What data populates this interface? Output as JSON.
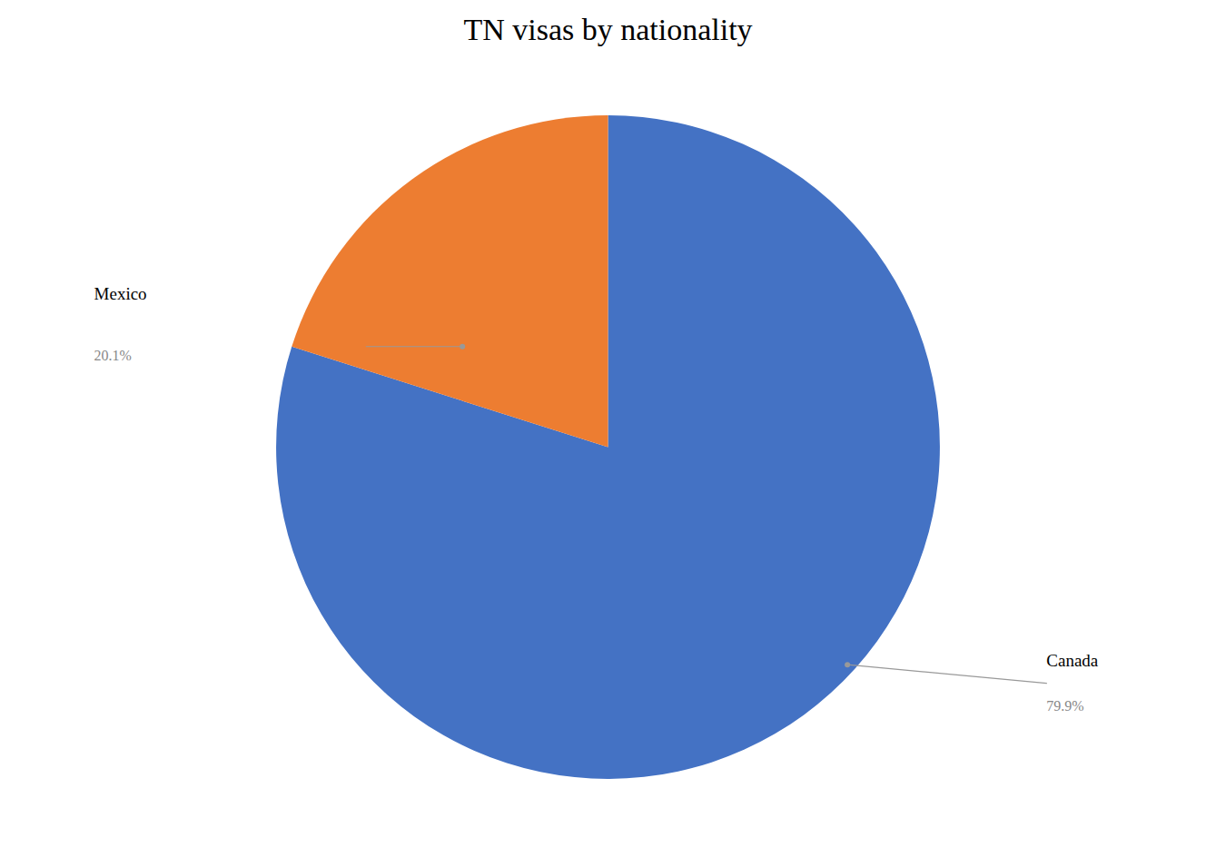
{
  "chart_data": {
    "type": "pie",
    "title": "TN visas by nationality",
    "categories": [
      "Canada",
      "Mexico"
    ],
    "values": [
      79.9,
      20.1
    ],
    "value_labels": [
      "79.9%",
      "20.1%"
    ],
    "colors": [
      "#4472C4",
      "#ED7D31"
    ],
    "data_labels": true
  }
}
